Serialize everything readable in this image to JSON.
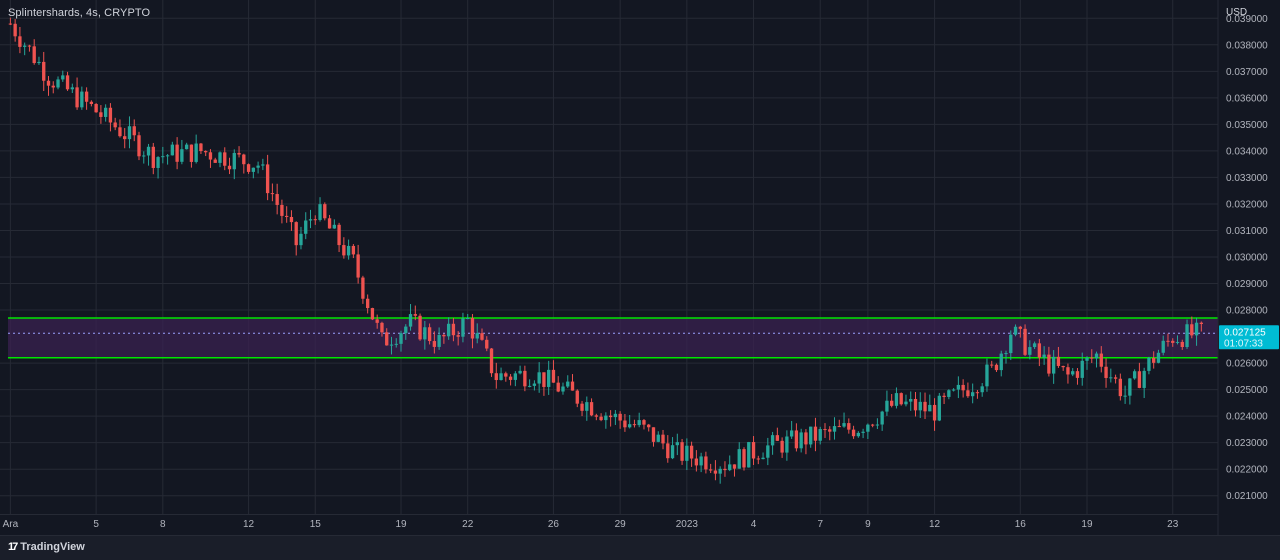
{
  "header": {
    "title": "Splintershards, 4s, CRYPTO",
    "currency": "USD"
  },
  "footer": {
    "brand": "TradingView",
    "brand_icon": "tradingview-logo-icon"
  },
  "colors": {
    "background": "#131722",
    "grid": "#262a35",
    "up": "#26a69a",
    "down": "#ef5350",
    "zone_fill": "#3a2150",
    "zone_lines": "#00e600",
    "price_label": "#00bcd4",
    "axis_text": "#b2b5be"
  },
  "chart_data": {
    "type": "candlestick",
    "symbol": "Splintershards",
    "interval": "4s",
    "exchange": "CRYPTO",
    "ylim": [
      0.0205,
      0.0395
    ],
    "y_ticks": [
      "0.039000",
      "0.038000",
      "0.037000",
      "0.036000",
      "0.035000",
      "0.034000",
      "0.033000",
      "0.032000",
      "0.031000",
      "0.030000",
      "0.029000",
      "0.028000",
      "0.026000",
      "0.025000",
      "0.024000",
      "0.023000",
      "0.022000",
      "0.021000"
    ],
    "x_ticks": [
      {
        "label": "Ara",
        "bar": 0
      },
      {
        "label": "5",
        "bar": 18
      },
      {
        "label": "8",
        "bar": 32
      },
      {
        "label": "12",
        "bar": 50
      },
      {
        "label": "15",
        "bar": 64
      },
      {
        "label": "19",
        "bar": 82
      },
      {
        "label": "22",
        "bar": 96
      },
      {
        "label": "26",
        "bar": 114
      },
      {
        "label": "29",
        "bar": 128
      },
      {
        "label": "2023",
        "bar": 142
      },
      {
        "label": "4",
        "bar": 156
      },
      {
        "label": "7",
        "bar": 170
      },
      {
        "label": "9",
        "bar": 180
      },
      {
        "label": "12",
        "bar": 194
      },
      {
        "label": "16",
        "bar": 212
      },
      {
        "label": "19",
        "bar": 226
      },
      {
        "label": "23",
        "bar": 244
      }
    ],
    "last_price": "0.027125",
    "countdown": "01:07:33",
    "current_price_value": 0.027125,
    "zone": {
      "upper": 0.0277,
      "lower": 0.0262
    },
    "keypoints": [
      [
        0,
        0.0388
      ],
      [
        8,
        0.0368
      ],
      [
        18,
        0.0355
      ],
      [
        30,
        0.0338
      ],
      [
        40,
        0.034
      ],
      [
        52,
        0.0335
      ],
      [
        60,
        0.0305
      ],
      [
        64,
        0.0318
      ],
      [
        72,
        0.0298
      ],
      [
        78,
        0.0268
      ],
      [
        84,
        0.0275
      ],
      [
        90,
        0.0268
      ],
      [
        96,
        0.0276
      ],
      [
        102,
        0.0255
      ],
      [
        110,
        0.0256
      ],
      [
        118,
        0.0248
      ],
      [
        126,
        0.024
      ],
      [
        132,
        0.0236
      ],
      [
        140,
        0.0226
      ],
      [
        150,
        0.0222
      ],
      [
        158,
        0.0228
      ],
      [
        168,
        0.0232
      ],
      [
        178,
        0.0236
      ],
      [
        186,
        0.0245
      ],
      [
        194,
        0.0242
      ],
      [
        200,
        0.025
      ],
      [
        206,
        0.0257
      ],
      [
        210,
        0.0272
      ],
      [
        216,
        0.0262
      ],
      [
        222,
        0.0255
      ],
      [
        228,
        0.0263
      ],
      [
        234,
        0.0248
      ],
      [
        240,
        0.0262
      ],
      [
        244,
        0.027
      ],
      [
        250,
        0.0271
      ]
    ]
  }
}
